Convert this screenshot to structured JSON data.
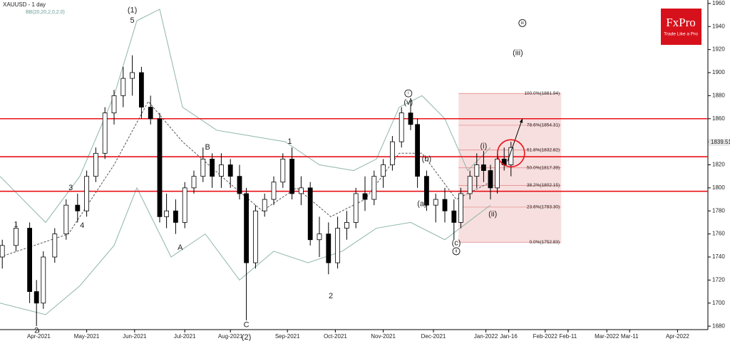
{
  "chart_data": {
    "type": "candlestick",
    "title": "XAUUSD - 1 day",
    "subtitle": "BB(20,20,2,0,2.0)",
    "brand": {
      "name": "FxPro",
      "tagline": "Trade Like a Pro"
    },
    "xlim": [
      0,
      310
    ],
    "xticks": [
      {
        "value": 17,
        "label": "Apr-2021"
      },
      {
        "value": 38,
        "label": "May-2021"
      },
      {
        "value": 59,
        "label": "Jun-2021"
      },
      {
        "value": 81,
        "label": "Jul-2021"
      },
      {
        "value": 101,
        "label": "Aug-2021"
      },
      {
        "value": 126,
        "label": "Sep-2021"
      },
      {
        "value": 147,
        "label": "Oct-2021"
      },
      {
        "value": 168,
        "label": "Nov-2021"
      },
      {
        "value": 190,
        "label": "Dec-2021"
      },
      {
        "value": 213,
        "label": "Jan-2022"
      },
      {
        "value": 223,
        "label": "Jan-16"
      },
      {
        "value": 239,
        "label": "Feb-2022"
      },
      {
        "value": 249,
        "label": "Feb-11"
      },
      {
        "value": 266,
        "label": "Mar-2022"
      },
      {
        "value": 276,
        "label": "Mar-11"
      },
      {
        "value": 297,
        "label": "Apr-2022"
      }
    ],
    "ylim": [
      1677,
      1963
    ],
    "yticks": [
      1680,
      1700,
      1720,
      1740,
      1760,
      1780,
      1800,
      1820,
      1840,
      1860,
      1880,
      1900,
      1920,
      1940,
      1960
    ],
    "last_price": {
      "value": 1839.51,
      "label": "1839.51"
    },
    "up_color": "#ffffff",
    "down_color": "#000000",
    "candles": [
      {
        "x": 1,
        "o": 1740,
        "h": 1755,
        "l": 1730,
        "c": 1750
      },
      {
        "x": 7,
        "o": 1750,
        "h": 1770,
        "l": 1745,
        "c": 1765
      },
      {
        "x": 13,
        "o": 1765,
        "h": 1770,
        "l": 1700,
        "c": 1710
      },
      {
        "x": 16,
        "o": 1710,
        "h": 1720,
        "l": 1680,
        "c": 1700
      },
      {
        "x": 19,
        "o": 1700,
        "h": 1745,
        "l": 1695,
        "c": 1740
      },
      {
        "x": 24,
        "o": 1740,
        "h": 1765,
        "l": 1735,
        "c": 1760
      },
      {
        "x": 29,
        "o": 1760,
        "h": 1790,
        "l": 1755,
        "c": 1785
      },
      {
        "x": 34,
        "o": 1785,
        "h": 1795,
        "l": 1770,
        "c": 1780
      },
      {
        "x": 38,
        "o": 1780,
        "h": 1815,
        "l": 1775,
        "c": 1810
      },
      {
        "x": 42,
        "o": 1810,
        "h": 1835,
        "l": 1805,
        "c": 1830
      },
      {
        "x": 46,
        "o": 1830,
        "h": 1870,
        "l": 1825,
        "c": 1865
      },
      {
        "x": 50,
        "o": 1865,
        "h": 1885,
        "l": 1855,
        "c": 1880
      },
      {
        "x": 54,
        "o": 1880,
        "h": 1905,
        "l": 1870,
        "c": 1895
      },
      {
        "x": 58,
        "o": 1895,
        "h": 1915,
        "l": 1880,
        "c": 1900
      },
      {
        "x": 62,
        "o": 1900,
        "h": 1905,
        "l": 1860,
        "c": 1870
      },
      {
        "x": 66,
        "o": 1870,
        "h": 1880,
        "l": 1855,
        "c": 1860
      },
      {
        "x": 70,
        "o": 1860,
        "h": 1865,
        "l": 1770,
        "c": 1775
      },
      {
        "x": 73,
        "o": 1775,
        "h": 1795,
        "l": 1765,
        "c": 1780
      },
      {
        "x": 77,
        "o": 1780,
        "h": 1790,
        "l": 1760,
        "c": 1770
      },
      {
        "x": 81,
        "o": 1770,
        "h": 1805,
        "l": 1765,
        "c": 1800
      },
      {
        "x": 85,
        "o": 1800,
        "h": 1815,
        "l": 1795,
        "c": 1810
      },
      {
        "x": 89,
        "o": 1810,
        "h": 1835,
        "l": 1805,
        "c": 1825
      },
      {
        "x": 93,
        "o": 1825,
        "h": 1830,
        "l": 1800,
        "c": 1810
      },
      {
        "x": 97,
        "o": 1810,
        "h": 1830,
        "l": 1800,
        "c": 1820
      },
      {
        "x": 101,
        "o": 1820,
        "h": 1825,
        "l": 1800,
        "c": 1810
      },
      {
        "x": 105,
        "o": 1810,
        "h": 1820,
        "l": 1790,
        "c": 1795
      },
      {
        "x": 108,
        "o": 1795,
        "h": 1800,
        "l": 1685,
        "c": 1735
      },
      {
        "x": 112,
        "o": 1735,
        "h": 1785,
        "l": 1730,
        "c": 1780
      },
      {
        "x": 116,
        "o": 1780,
        "h": 1795,
        "l": 1775,
        "c": 1790
      },
      {
        "x": 120,
        "o": 1790,
        "h": 1810,
        "l": 1785,
        "c": 1805
      },
      {
        "x": 124,
        "o": 1805,
        "h": 1830,
        "l": 1800,
        "c": 1825
      },
      {
        "x": 128,
        "o": 1825,
        "h": 1835,
        "l": 1790,
        "c": 1795
      },
      {
        "x": 132,
        "o": 1795,
        "h": 1810,
        "l": 1785,
        "c": 1800
      },
      {
        "x": 136,
        "o": 1800,
        "h": 1805,
        "l": 1750,
        "c": 1755
      },
      {
        "x": 140,
        "o": 1755,
        "h": 1775,
        "l": 1740,
        "c": 1760
      },
      {
        "x": 144,
        "o": 1760,
        "h": 1770,
        "l": 1725,
        "c": 1735
      },
      {
        "x": 148,
        "o": 1735,
        "h": 1775,
        "l": 1730,
        "c": 1765
      },
      {
        "x": 152,
        "o": 1765,
        "h": 1780,
        "l": 1755,
        "c": 1770
      },
      {
        "x": 156,
        "o": 1770,
        "h": 1800,
        "l": 1765,
        "c": 1795
      },
      {
        "x": 160,
        "o": 1795,
        "h": 1810,
        "l": 1780,
        "c": 1790
      },
      {
        "x": 164,
        "o": 1790,
        "h": 1815,
        "l": 1785,
        "c": 1810
      },
      {
        "x": 168,
        "o": 1810,
        "h": 1825,
        "l": 1800,
        "c": 1820
      },
      {
        "x": 172,
        "o": 1820,
        "h": 1845,
        "l": 1815,
        "c": 1840
      },
      {
        "x": 176,
        "o": 1840,
        "h": 1870,
        "l": 1835,
        "c": 1865
      },
      {
        "x": 180,
        "o": 1865,
        "h": 1878,
        "l": 1850,
        "c": 1855
      },
      {
        "x": 183,
        "o": 1855,
        "h": 1860,
        "l": 1800,
        "c": 1810
      },
      {
        "x": 187,
        "o": 1810,
        "h": 1815,
        "l": 1780,
        "c": 1785
      },
      {
        "x": 191,
        "o": 1785,
        "h": 1795,
        "l": 1770,
        "c": 1790
      },
      {
        "x": 195,
        "o": 1790,
        "h": 1800,
        "l": 1770,
        "c": 1780
      },
      {
        "x": 199,
        "o": 1780,
        "h": 1790,
        "l": 1755,
        "c": 1770
      },
      {
        "x": 202,
        "o": 1770,
        "h": 1800,
        "l": 1765,
        "c": 1795
      },
      {
        "x": 206,
        "o": 1795,
        "h": 1815,
        "l": 1790,
        "c": 1810
      },
      {
        "x": 209,
        "o": 1810,
        "h": 1830,
        "l": 1800,
        "c": 1820
      },
      {
        "x": 212,
        "o": 1820,
        "h": 1832,
        "l": 1805,
        "c": 1815
      },
      {
        "x": 215,
        "o": 1815,
        "h": 1820,
        "l": 1790,
        "c": 1800
      },
      {
        "x": 218,
        "o": 1800,
        "h": 1830,
        "l": 1795,
        "c": 1825
      },
      {
        "x": 221,
        "o": 1825,
        "h": 1835,
        "l": 1815,
        "c": 1820
      },
      {
        "x": 224,
        "o": 1820,
        "h": 1840,
        "l": 1810,
        "c": 1835
      }
    ],
    "series": [
      {
        "name": "upper band",
        "color": "#8fb5ad",
        "dash": false,
        "x": [
          0,
          20,
          35,
          50,
          60,
          70,
          80,
          95,
          110,
          125,
          140,
          155,
          165,
          175,
          185,
          195,
          205,
          215
        ],
        "values": [
          1810,
          1770,
          1810,
          1880,
          1945,
          1955,
          1870,
          1850,
          1845,
          1840,
          1820,
          1815,
          1825,
          1870,
          1880,
          1860,
          1815,
          1835
        ]
      },
      {
        "name": "lower band",
        "color": "#8fb5ad",
        "dash": false,
        "x": [
          0,
          20,
          35,
          50,
          60,
          75,
          90,
          105,
          120,
          135,
          150,
          165,
          180,
          195,
          205,
          215
        ],
        "values": [
          1700,
          1690,
          1715,
          1750,
          1800,
          1740,
          1760,
          1720,
          1745,
          1735,
          1745,
          1765,
          1770,
          1755,
          1770,
          1785
        ]
      },
      {
        "name": "middle band",
        "color": "#555555",
        "dash": true,
        "x": [
          0,
          30,
          50,
          65,
          80,
          100,
          115,
          130,
          145,
          160,
          175,
          185,
          200,
          215
        ],
        "values": [
          1740,
          1760,
          1820,
          1875,
          1840,
          1805,
          1780,
          1800,
          1775,
          1790,
          1830,
          1830,
          1790,
          1805
        ]
      }
    ],
    "levels": [
      1860,
      1827,
      1797
    ],
    "level_color": "#e8121a",
    "fib_box": {
      "x": [
        201,
        246
      ],
      "color": "#f2c4c4",
      "levels": [
        {
          "value": 1881.94,
          "label": "100.0%(1881.94)"
        },
        {
          "value": 1854.31,
          "label": "78.6%(1854.31)"
        },
        {
          "value": 1832.82,
          "label": "61.8%(1832.82)"
        },
        {
          "value": 1817.39,
          "label": "50.0%(1817.39)"
        },
        {
          "value": 1802.15,
          "label": "38.2%(1802.15)"
        },
        {
          "value": 1783.3,
          "label": "23.6%(1783.30)"
        },
        {
          "value": 1752.83,
          "label": "0.0%(1752.83)"
        }
      ]
    },
    "arrow": {
      "x": [
        222.5,
        229
      ],
      "y": [
        1823,
        1860
      ]
    },
    "circle": {
      "x": 224,
      "y": 1830
    },
    "annotations": [
      {
        "text": "1",
        "x": 7,
        "y": 1768,
        "circled": false
      },
      {
        "text": "2",
        "x": 16,
        "y": 1676,
        "circled": false
      },
      {
        "text": "3",
        "x": 31,
        "y": 1800,
        "circled": false
      },
      {
        "text": "4",
        "x": 36,
        "y": 1767,
        "circled": false
      },
      {
        "text": "(1)",
        "x": 58,
        "y": 1954,
        "circled": false
      },
      {
        "text": "5",
        "x": 58,
        "y": 1945,
        "circled": false
      },
      {
        "text": "A",
        "x": 79,
        "y": 1748,
        "circled": false
      },
      {
        "text": "B",
        "x": 91,
        "y": 1835,
        "circled": false
      },
      {
        "text": "C",
        "x": 108,
        "y": 1681,
        "circled": false
      },
      {
        "text": "(2)",
        "x": 108,
        "y": 1670,
        "circled": false
      },
      {
        "text": "1",
        "x": 127,
        "y": 1840,
        "circled": false
      },
      {
        "text": "2",
        "x": 145,
        "y": 1706,
        "circled": false
      },
      {
        "text": "i",
        "x": 179,
        "y": 1882,
        "circled": true
      },
      {
        "text": "(v)",
        "x": 179,
        "y": 1874,
        "circled": false
      },
      {
        "text": "(a)",
        "x": 185,
        "y": 1786,
        "circled": false
      },
      {
        "text": "(b)",
        "x": 187,
        "y": 1825,
        "circled": false
      },
      {
        "text": "(c)",
        "x": 200,
        "y": 1752,
        "circled": false
      },
      {
        "text": "ii",
        "x": 200,
        "y": 1745,
        "circled": true
      },
      {
        "text": "(i)",
        "x": 212,
        "y": 1836,
        "circled": false
      },
      {
        "text": "(ii)",
        "x": 216,
        "y": 1777,
        "circled": false
      },
      {
        "text": "(iii)",
        "x": 227,
        "y": 1917,
        "circled": false
      },
      {
        "text": "iii",
        "x": 229,
        "y": 1943,
        "circled": true
      }
    ]
  }
}
